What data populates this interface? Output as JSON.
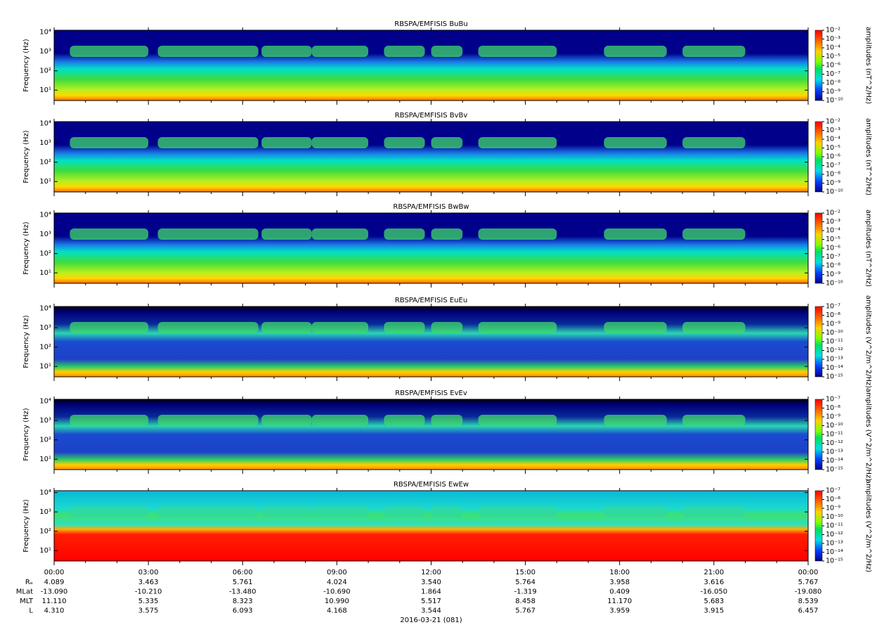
{
  "chart_data": [
    {
      "type": "spectrogram",
      "title": "RBSPA/EMFISIS  BuBu",
      "ylabel": "Frequency (Hz)",
      "yscale": "log",
      "ylim": [
        2.9,
        12500
      ],
      "yticks": [
        {
          "value": 10,
          "label": "10¹"
        },
        {
          "value": 100,
          "label": "10²"
        },
        {
          "value": 1000,
          "label": "10³"
        },
        {
          "value": 10000,
          "label": "10⁴"
        }
      ],
      "colorbar": {
        "label": "amplitudes (nT^2/Hz)",
        "zscale": "log",
        "zlim": [
          1e-10,
          0.01
        ],
        "zticks": [
          {
            "value": 0.01,
            "label": "10⁻²"
          },
          {
            "value": 0.001,
            "label": "10⁻³"
          },
          {
            "value": 0.0001,
            "label": "10⁻⁴"
          },
          {
            "value": 1e-05,
            "label": "10⁻⁵"
          },
          {
            "value": 1e-06,
            "label": "10⁻⁶"
          },
          {
            "value": 1e-07,
            "label": "10⁻⁷"
          },
          {
            "value": 1e-08,
            "label": "10⁻⁸"
          },
          {
            "value": 1e-09,
            "label": "10⁻⁹"
          },
          {
            "value": 1e-10,
            "label": "10⁻¹⁰"
          }
        ]
      }
    },
    {
      "type": "spectrogram",
      "title": "RBSPA/EMFISIS  BvBv",
      "ylabel": "Frequency (Hz)",
      "yscale": "log",
      "ylim": [
        2.9,
        12500
      ],
      "yticks": [
        {
          "value": 10,
          "label": "10¹"
        },
        {
          "value": 100,
          "label": "10²"
        },
        {
          "value": 1000,
          "label": "10³"
        },
        {
          "value": 10000,
          "label": "10⁴"
        }
      ],
      "colorbar": {
        "label": "amplitudes (nT^2/Hz)",
        "zscale": "log",
        "zlim": [
          1e-10,
          0.01
        ],
        "zticks": [
          {
            "value": 0.01,
            "label": "10⁻²"
          },
          {
            "value": 0.001,
            "label": "10⁻³"
          },
          {
            "value": 0.0001,
            "label": "10⁻⁴"
          },
          {
            "value": 1e-05,
            "label": "10⁻⁵"
          },
          {
            "value": 1e-06,
            "label": "10⁻⁶"
          },
          {
            "value": 1e-07,
            "label": "10⁻⁷"
          },
          {
            "value": 1e-08,
            "label": "10⁻⁸"
          },
          {
            "value": 1e-09,
            "label": "10⁻⁹"
          },
          {
            "value": 1e-10,
            "label": "10⁻¹⁰"
          }
        ]
      }
    },
    {
      "type": "spectrogram",
      "title": "RBSPA/EMFISIS  BwBw",
      "ylabel": "Frequency (Hz)",
      "yscale": "log",
      "ylim": [
        2.9,
        12500
      ],
      "yticks": [
        {
          "value": 10,
          "label": "10¹"
        },
        {
          "value": 100,
          "label": "10²"
        },
        {
          "value": 1000,
          "label": "10³"
        },
        {
          "value": 10000,
          "label": "10⁴"
        }
      ],
      "colorbar": {
        "label": "amplitudes (nT^2/Hz)",
        "zscale": "log",
        "zlim": [
          1e-10,
          0.01
        ],
        "zticks": [
          {
            "value": 0.01,
            "label": "10⁻²"
          },
          {
            "value": 0.001,
            "label": "10⁻³"
          },
          {
            "value": 0.0001,
            "label": "10⁻⁴"
          },
          {
            "value": 1e-05,
            "label": "10⁻⁵"
          },
          {
            "value": 1e-06,
            "label": "10⁻⁶"
          },
          {
            "value": 1e-07,
            "label": "10⁻⁷"
          },
          {
            "value": 1e-08,
            "label": "10⁻⁸"
          },
          {
            "value": 1e-09,
            "label": "10⁻⁹"
          },
          {
            "value": 1e-10,
            "label": "10⁻¹⁰"
          }
        ]
      }
    },
    {
      "type": "spectrogram",
      "title": "RBSPA/EMFISIS  EuEu",
      "ylabel": "Frequency (Hz)",
      "yscale": "log",
      "ylim": [
        2.9,
        12500
      ],
      "yticks": [
        {
          "value": 10,
          "label": "10¹"
        },
        {
          "value": 100,
          "label": "10²"
        },
        {
          "value": 1000,
          "label": "10³"
        },
        {
          "value": 10000,
          "label": "10⁴"
        }
      ],
      "colorbar": {
        "label": "amplitudes (V^2/m^2/Hz)",
        "zscale": "log",
        "zlim": [
          1e-15,
          1e-07
        ],
        "zticks": [
          {
            "value": 1e-07,
            "label": "10⁻⁷"
          },
          {
            "value": 1e-08,
            "label": "10⁻⁸"
          },
          {
            "value": 1e-09,
            "label": "10⁻⁹"
          },
          {
            "value": 1e-10,
            "label": "10⁻¹⁰"
          },
          {
            "value": 1e-11,
            "label": "10⁻¹¹"
          },
          {
            "value": 1e-12,
            "label": "10⁻¹²"
          },
          {
            "value": 1e-13,
            "label": "10⁻¹³"
          },
          {
            "value": 1e-14,
            "label": "10⁻¹⁴"
          },
          {
            "value": 1e-15,
            "label": "10⁻¹⁵"
          }
        ]
      }
    },
    {
      "type": "spectrogram",
      "title": "RBSPA/EMFISIS  EvEv",
      "ylabel": "Frequency (Hz)",
      "yscale": "log",
      "ylim": [
        2.9,
        12500
      ],
      "yticks": [
        {
          "value": 10,
          "label": "10¹"
        },
        {
          "value": 100,
          "label": "10²"
        },
        {
          "value": 1000,
          "label": "10³"
        },
        {
          "value": 10000,
          "label": "10⁴"
        }
      ],
      "colorbar": {
        "label": "amplitudes (V^2/m^2/Hz)",
        "zscale": "log",
        "zlim": [
          1e-15,
          1e-07
        ],
        "zticks": [
          {
            "value": 1e-07,
            "label": "10⁻⁷"
          },
          {
            "value": 1e-08,
            "label": "10⁻⁸"
          },
          {
            "value": 1e-09,
            "label": "10⁻⁹"
          },
          {
            "value": 1e-10,
            "label": "10⁻¹⁰"
          },
          {
            "value": 1e-11,
            "label": "10⁻¹¹"
          },
          {
            "value": 1e-12,
            "label": "10⁻¹²"
          },
          {
            "value": 1e-13,
            "label": "10⁻¹³"
          },
          {
            "value": 1e-14,
            "label": "10⁻¹⁴"
          },
          {
            "value": 1e-15,
            "label": "10⁻¹⁵"
          }
        ]
      }
    },
    {
      "type": "spectrogram",
      "title": "RBSPA/EMFISIS  EwEw",
      "ylabel": "Frequency (Hz)",
      "yscale": "log",
      "ylim": [
        2.9,
        12500
      ],
      "yticks": [
        {
          "value": 10,
          "label": "10¹"
        },
        {
          "value": 100,
          "label": "10²"
        },
        {
          "value": 1000,
          "label": "10³"
        },
        {
          "value": 10000,
          "label": "10⁴"
        }
      ],
      "colorbar": {
        "label": "amplitudes (V^2/m^2/Hz)",
        "zscale": "log",
        "zlim": [
          1e-15,
          1e-07
        ],
        "zticks": [
          {
            "value": 1e-07,
            "label": "10⁻⁷"
          },
          {
            "value": 1e-08,
            "label": "10⁻⁸"
          },
          {
            "value": 1e-09,
            "label": "10⁻⁹"
          },
          {
            "value": 1e-10,
            "label": "10⁻¹⁰"
          },
          {
            "value": 1e-11,
            "label": "10⁻¹¹"
          },
          {
            "value": 1e-12,
            "label": "10⁻¹²"
          },
          {
            "value": 1e-13,
            "label": "10⁻¹³"
          },
          {
            "value": 1e-14,
            "label": "10⁻¹⁴"
          },
          {
            "value": 1e-15,
            "label": "10⁻¹⁵"
          }
        ]
      },
      "xlim": [
        0,
        24
      ],
      "xticks": [
        {
          "value": 0,
          "label": "00:00"
        },
        {
          "value": 3,
          "label": "03:00"
        },
        {
          "value": 6,
          "label": "06:00"
        },
        {
          "value": 9,
          "label": "09:00"
        },
        {
          "value": 12,
          "label": "12:00"
        },
        {
          "value": 15,
          "label": "15:00"
        },
        {
          "value": 18,
          "label": "18:00"
        },
        {
          "value": 21,
          "label": "21:00"
        },
        {
          "value": 24,
          "label": "00:00"
        }
      ],
      "ephemeris": [
        {
          "name": "Rₑ",
          "values": [
            "4.089",
            "3.463",
            "5.761",
            "4.024",
            "3.540",
            "5.764",
            "3.958",
            "3.616",
            "5.767"
          ]
        },
        {
          "name": "MLat",
          "values": [
            "-13.090",
            "-10.210",
            "-13.480",
            "-10.690",
            "1.864",
            "-1.319",
            "0.409",
            "-16.050",
            "-19.080"
          ]
        },
        {
          "name": "MLT",
          "values": [
            "11.110",
            "5.335",
            "8.323",
            "10.990",
            "5.517",
            "8.458",
            "11.170",
            "5.683",
            "8.539"
          ]
        },
        {
          "name": "L",
          "values": [
            "4.310",
            "3.575",
            "6.093",
            "4.168",
            "3.544",
            "5.767",
            "3.959",
            "3.915",
            "6.457"
          ]
        }
      ],
      "xlabel": "2016-03-21 (081)"
    }
  ]
}
